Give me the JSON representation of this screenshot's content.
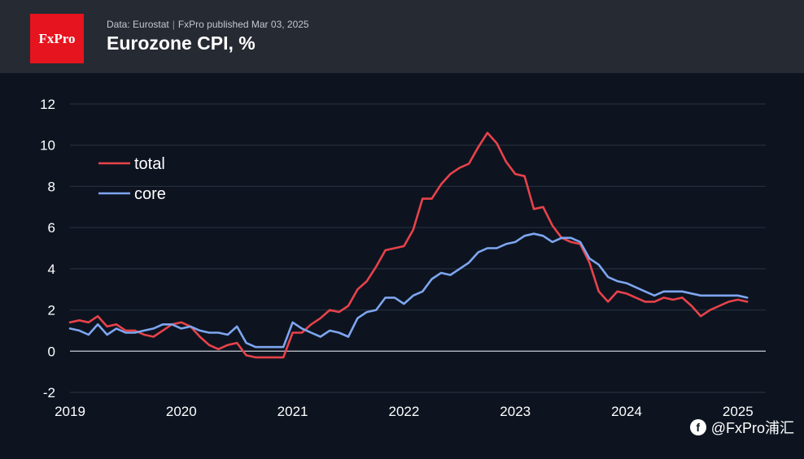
{
  "header": {
    "logo_text": "FxPro",
    "source": "Data: Eurostat",
    "separator": "|",
    "published": "FxPro published Mar 03, 2025",
    "title": "Eurozone CPI, %"
  },
  "watermark": {
    "icon": "f",
    "text": "@FxPro浦汇"
  },
  "colors": {
    "background": "#0d1420",
    "header": "#262a33",
    "grid": "#2c3340",
    "zero_line": "#c8ccd4",
    "total": "#e8424a",
    "core": "#7ea6f0"
  },
  "chart_data": {
    "type": "line",
    "title": "Eurozone CPI, %",
    "xlabel": "",
    "ylabel": "",
    "ylim": [
      -2,
      12
    ],
    "yticks": [
      -2,
      0,
      2,
      4,
      6,
      8,
      10,
      12
    ],
    "xlim": [
      2019,
      2025.25
    ],
    "xticks": [
      2019,
      2020,
      2021,
      2022,
      2023,
      2024,
      2025
    ],
    "xtick_labels": [
      "2019",
      "2020",
      "2021",
      "2022",
      "2023",
      "2024",
      "2025"
    ],
    "grid": true,
    "legend_position": "top-left",
    "x_start": 2019,
    "x_step": 0.083333,
    "series": [
      {
        "name": "total",
        "color": "#e8424a",
        "values": [
          1.4,
          1.5,
          1.4,
          1.7,
          1.2,
          1.3,
          1.0,
          1.0,
          0.8,
          0.7,
          1.0,
          1.3,
          1.4,
          1.2,
          0.7,
          0.3,
          0.1,
          0.3,
          0.4,
          -0.2,
          -0.3,
          -0.3,
          -0.3,
          -0.3,
          0.9,
          0.9,
          1.3,
          1.6,
          2.0,
          1.9,
          2.2,
          3.0,
          3.4,
          4.1,
          4.9,
          5.0,
          5.1,
          5.9,
          7.4,
          7.4,
          8.1,
          8.6,
          8.9,
          9.1,
          9.9,
          10.6,
          10.1,
          9.2,
          8.6,
          8.5,
          6.9,
          7.0,
          6.1,
          5.5,
          5.3,
          5.2,
          4.3,
          2.9,
          2.4,
          2.9,
          2.8,
          2.6,
          2.4,
          2.4,
          2.6,
          2.5,
          2.6,
          2.2,
          1.7,
          2.0,
          2.2,
          2.4,
          2.5,
          2.4
        ]
      },
      {
        "name": "core",
        "color": "#7ea6f0",
        "values": [
          1.1,
          1.0,
          0.8,
          1.3,
          0.8,
          1.1,
          0.9,
          0.9,
          1.0,
          1.1,
          1.3,
          1.3,
          1.1,
          1.2,
          1.0,
          0.9,
          0.9,
          0.8,
          1.2,
          0.4,
          0.2,
          0.2,
          0.2,
          0.2,
          1.4,
          1.1,
          0.9,
          0.7,
          1.0,
          0.9,
          0.7,
          1.6,
          1.9,
          2.0,
          2.6,
          2.6,
          2.3,
          2.7,
          2.9,
          3.5,
          3.8,
          3.7,
          4.0,
          4.3,
          4.8,
          5.0,
          5.0,
          5.2,
          5.3,
          5.6,
          5.7,
          5.6,
          5.3,
          5.5,
          5.5,
          5.3,
          4.5,
          4.2,
          3.6,
          3.4,
          3.3,
          3.1,
          2.9,
          2.7,
          2.9,
          2.9,
          2.9,
          2.8,
          2.7,
          2.7,
          2.7,
          2.7,
          2.7,
          2.6
        ]
      }
    ]
  }
}
